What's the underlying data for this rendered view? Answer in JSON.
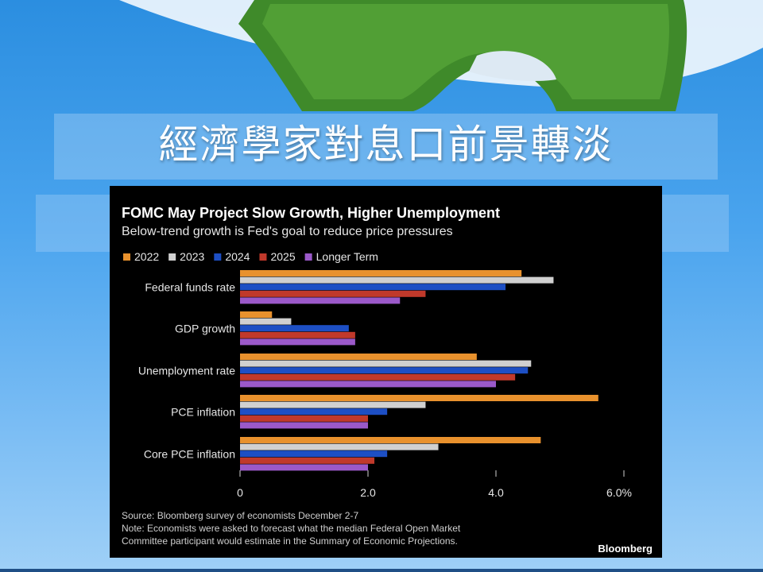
{
  "slide": {
    "title": "經濟學家對息口前景轉淡"
  },
  "chart_data": {
    "type": "bar",
    "orientation": "horizontal",
    "title": "FOMC May Project Slow Growth, Higher Unemployment",
    "subtitle": "Below-trend growth is Fed's goal to reduce price pressures",
    "categories": [
      "Federal funds rate",
      "GDP growth",
      "Unemployment rate",
      "PCE inflation",
      "Core PCE inflation"
    ],
    "series": [
      {
        "name": "2022",
        "color": "#e8912d",
        "values": [
          4.4,
          0.5,
          3.7,
          5.6,
          4.7
        ]
      },
      {
        "name": "2023",
        "color": "#d0d0d0",
        "values": [
          4.9,
          0.8,
          4.55,
          2.9,
          3.1
        ]
      },
      {
        "name": "2024",
        "color": "#1d4fc4",
        "values": [
          4.15,
          1.7,
          4.5,
          2.3,
          2.3
        ]
      },
      {
        "name": "2025",
        "color": "#c0392b",
        "values": [
          2.9,
          1.8,
          4.3,
          2.0,
          2.1
        ]
      },
      {
        "name": "Longer Term",
        "color": "#9b59c9",
        "values": [
          2.5,
          1.8,
          4.0,
          2.0,
          2.0
        ]
      }
    ],
    "xlim": [
      0,
      6.0
    ],
    "ticks": [
      {
        "value": 0,
        "label": "0"
      },
      {
        "value": 2,
        "label": "2.0"
      },
      {
        "value": 4,
        "label": "4.0"
      },
      {
        "value": 6,
        "label": "6.0%"
      }
    ],
    "legend_position": "top-left",
    "grid": false,
    "source": "Source: Bloomberg survey of economists December 2-7",
    "note_line1": "Note: Economists were asked to forecast what the median Federal Open Market",
    "note_line2": "Committee participant would estimate in the Summary of Economic Projections.",
    "brand": "Bloomberg"
  }
}
